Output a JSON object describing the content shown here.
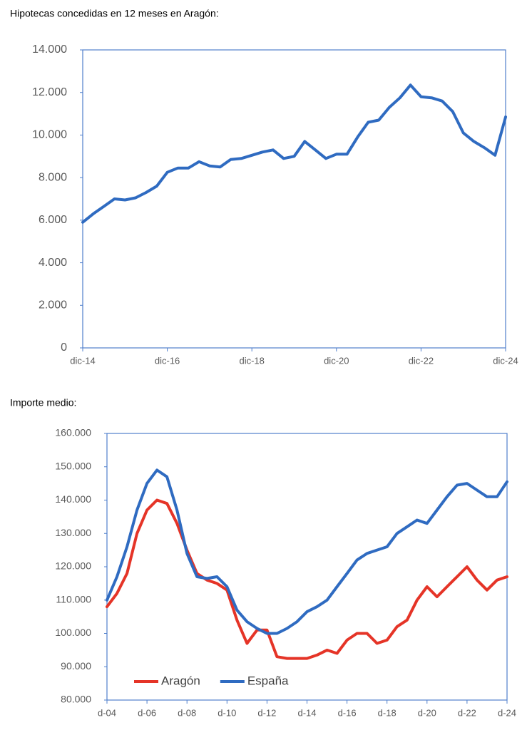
{
  "chart_data": [
    {
      "type": "line",
      "title": "Hipotecas concedidas en 12 meses en Aragón:",
      "categories": [
        "dic-14",
        null,
        null,
        null,
        null,
        null,
        null,
        null,
        "dic-16",
        null,
        null,
        null,
        null,
        null,
        null,
        null,
        "dic-18",
        null,
        null,
        null,
        null,
        null,
        null,
        null,
        "dic-20",
        null,
        null,
        null,
        null,
        null,
        null,
        null,
        "dic-22",
        null,
        null,
        null,
        null,
        null,
        null,
        null,
        "dic-24"
      ],
      "series": [
        {
          "name": null,
          "color": "#2f6bc1",
          "values": [
            5900,
            6300,
            6650,
            7000,
            6950,
            7050,
            7300,
            7600,
            8250,
            8450,
            8450,
            8750,
            8550,
            8500,
            8850,
            8900,
            9050,
            9200,
            9300,
            8900,
            9000,
            9700,
            9300,
            8900,
            9100,
            9100,
            9900,
            10600,
            10700,
            11300,
            11750,
            12350,
            11800,
            11750,
            11600,
            11100,
            10100,
            9700,
            9400,
            9050,
            10850
          ]
        }
      ],
      "ylim": [
        0,
        14000
      ],
      "yticks": [
        0,
        {
          "value": 2000,
          "label": "2.000"
        },
        {
          "value": 4000,
          "label": "4.000"
        },
        {
          "value": 6000,
          "label": "6.000"
        },
        {
          "value": 8000,
          "label": "8.000"
        },
        {
          "value": 10000,
          "label": "10.000"
        },
        {
          "value": 12000,
          "label": "12.000"
        },
        {
          "value": 14000,
          "label": "14.000"
        }
      ],
      "grid": false
    },
    {
      "type": "line",
      "title": "Importe medio:",
      "categories": [
        "d-04",
        null,
        null,
        null,
        "d-06",
        null,
        null,
        null,
        "d-08",
        null,
        null,
        null,
        "d-10",
        null,
        null,
        null,
        "d-12",
        null,
        null,
        null,
        "d-14",
        null,
        null,
        null,
        "d-16",
        null,
        null,
        null,
        "d-18",
        null,
        null,
        null,
        "d-20",
        null,
        null,
        null,
        "d-22",
        null,
        null,
        null,
        "d-24"
      ],
      "series": [
        {
          "name": "Aragón",
          "color": "#e53427",
          "values": [
            108000,
            112000,
            118000,
            130000,
            137000,
            140000,
            139000,
            133000,
            125000,
            118000,
            116000,
            115000,
            113000,
            104000,
            97000,
            101000,
            101000,
            93000,
            92500,
            92500,
            92500,
            93500,
            95000,
            94000,
            98000,
            100000,
            100000,
            97000,
            98000,
            102000,
            104000,
            110000,
            114000,
            111000,
            114000,
            117000,
            120000,
            116000,
            113000,
            116000,
            117000
          ]
        },
        {
          "name": "España",
          "color": "#2f6bc1",
          "values": [
            110000,
            117000,
            126000,
            137000,
            145000,
            149000,
            147000,
            137000,
            124000,
            117000,
            116500,
            117000,
            114000,
            107000,
            103500,
            101500,
            100000,
            100000,
            101500,
            103500,
            106500,
            108000,
            110000,
            114000,
            118000,
            122000,
            124000,
            125000,
            126000,
            130000,
            132000,
            134000,
            133000,
            137000,
            141000,
            144500,
            145000,
            143000,
            141000,
            141000,
            145500
          ]
        }
      ],
      "ylim": [
        80000,
        160000
      ],
      "yticks": [
        {
          "value": 80000,
          "label": "80.000"
        },
        {
          "value": 90000,
          "label": "90.000"
        },
        {
          "value": 100000,
          "label": "100.000"
        },
        {
          "value": 110000,
          "label": "110.000"
        },
        {
          "value": 120000,
          "label": "120.000"
        },
        {
          "value": 130000,
          "label": "130.000"
        },
        {
          "value": 140000,
          "label": "140.000"
        },
        {
          "value": 150000,
          "label": "150.000"
        },
        {
          "value": 160000,
          "label": "160.000"
        }
      ],
      "grid": false,
      "legend": "lower left"
    }
  ]
}
